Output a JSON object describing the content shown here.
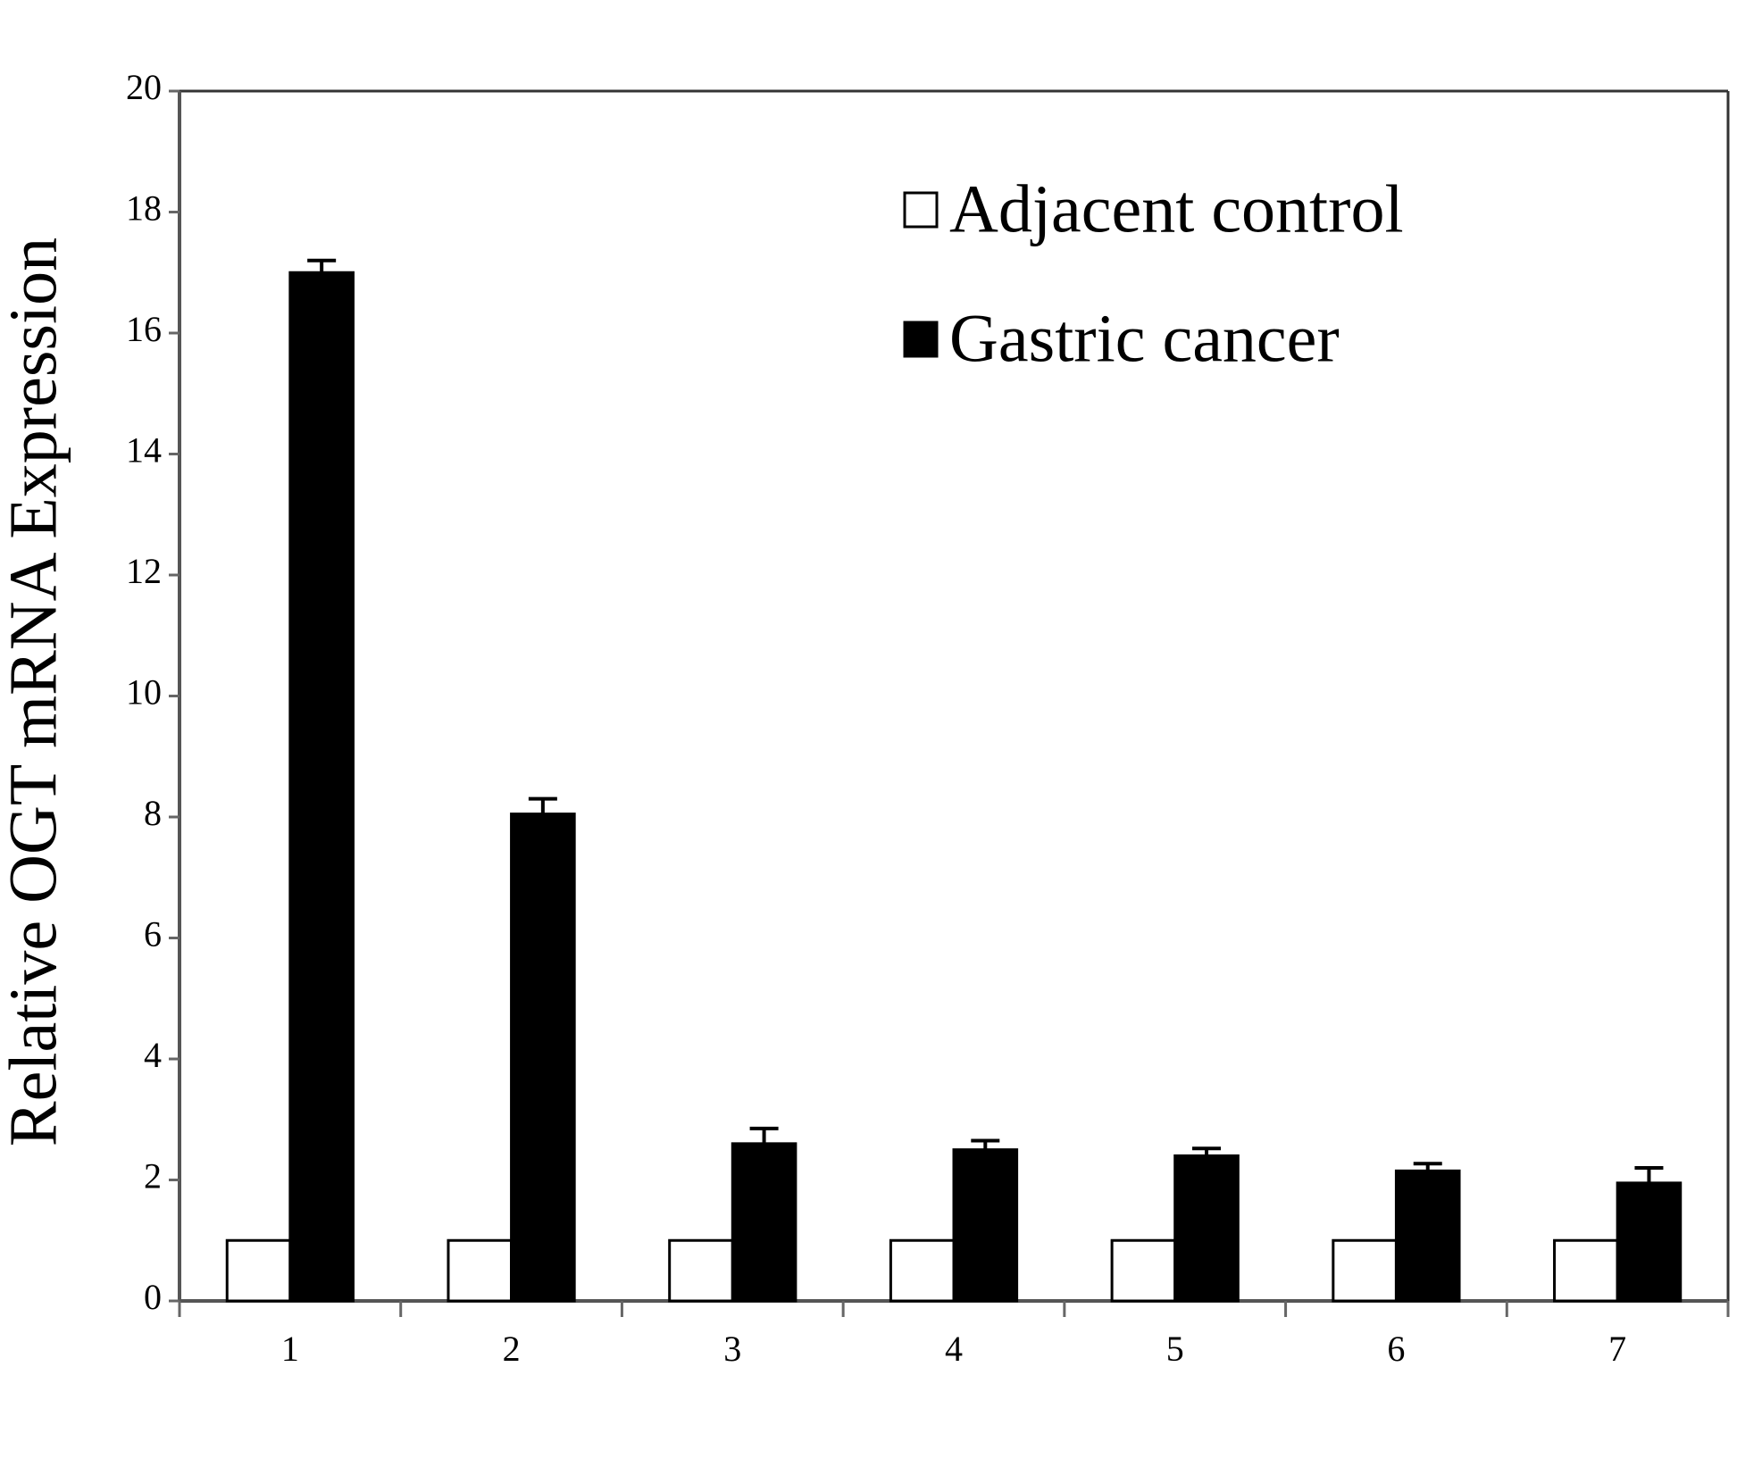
{
  "chart_data": {
    "type": "bar",
    "y_label": "Relative OGT mRNA Expression",
    "categories": [
      "1",
      "2",
      "3",
      "4",
      "5",
      "6",
      "7"
    ],
    "series": [
      {
        "name": "Adjacent control",
        "color": "#ffffff",
        "values": [
          1,
          1,
          1,
          1,
          1,
          1,
          1
        ]
      },
      {
        "name": "Gastric cancer",
        "color": "#000000",
        "values": [
          17.0,
          8.05,
          2.6,
          2.5,
          2.4,
          2.15,
          1.95
        ],
        "errors": [
          0.2,
          0.25,
          0.25,
          0.15,
          0.12,
          0.12,
          0.25
        ]
      }
    ],
    "ylim": [
      0,
      20
    ],
    "yticks": [
      0,
      2,
      4,
      6,
      8,
      10,
      12,
      14,
      16,
      18,
      20
    ],
    "legend": "top-right"
  }
}
